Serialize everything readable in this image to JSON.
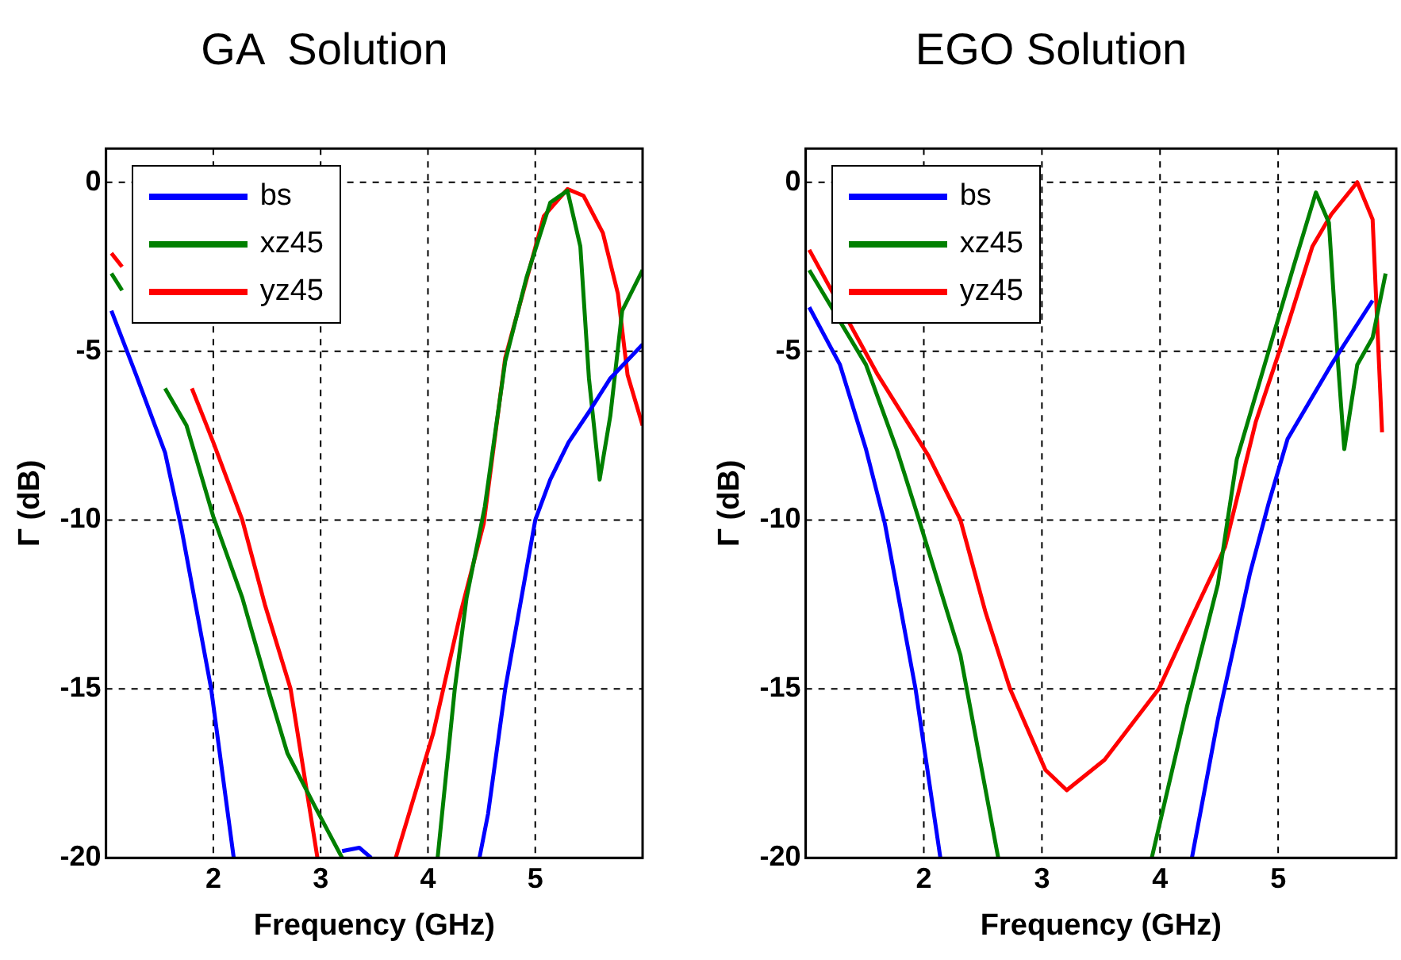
{
  "chart_data": [
    {
      "type": "line",
      "title": "GA  Solution",
      "xlabel": "Frequency (GHz)",
      "ylabel": "Γ (dB)",
      "xlim": [
        1,
        6
      ],
      "xticks": [
        2,
        3,
        4,
        5
      ],
      "ylim": [
        -20,
        1
      ],
      "yticks": [
        0,
        -5,
        -10,
        -15,
        -20
      ],
      "grid": true,
      "legend": "top left",
      "series": [
        {
          "name": "bs",
          "color": "#0000ff",
          "x": [
            1.05,
            1.28,
            1.55,
            1.7,
            1.98,
            2.19,
            2.7,
            3.2,
            3.36,
            3.47,
            4.0,
            4.48,
            4.56,
            4.72,
            5.0,
            5.14,
            5.31,
            5.5,
            5.7,
            6.0
          ],
          "values": [
            -3.8,
            -5.7,
            -8.0,
            -10.2,
            -15.0,
            -20,
            null,
            -19.8,
            -19.7,
            -20,
            null,
            -20,
            -18.7,
            -15.0,
            -10.0,
            -8.8,
            -7.7,
            -6.8,
            -5.8,
            -4.8
          ]
        },
        {
          "name": "xz45",
          "color": "#008000",
          "x": [
            1.05,
            1.15,
            1.23,
            1.55,
            1.75,
            2.0,
            2.27,
            2.53,
            2.69,
            2.95,
            3.2,
            3.6,
            4.09,
            4.25,
            4.36,
            4.53,
            4.72,
            4.92,
            5.14,
            5.3,
            5.42,
            5.5,
            5.6,
            5.7,
            5.81,
            6.0
          ],
          "values": [
            -2.7,
            -3.2,
            null,
            -6.1,
            -7.2,
            -9.9,
            -12.3,
            -15.2,
            -16.9,
            -18.5,
            -20,
            null,
            -20,
            -15.0,
            -12.3,
            -9.6,
            -5.3,
            -2.8,
            -0.6,
            -0.25,
            -1.9,
            -5.8,
            -8.8,
            -6.9,
            -3.8,
            -2.6
          ]
        },
        {
          "name": "yz45",
          "color": "#ff0000",
          "x": [
            1.05,
            1.15,
            1.23,
            1.8,
            2.0,
            2.27,
            2.48,
            2.72,
            2.97,
            3.3,
            3.7,
            4.05,
            4.3,
            4.52,
            4.72,
            5.08,
            5.3,
            5.45,
            5.63,
            5.77,
            5.86,
            6.0
          ],
          "values": [
            -2.1,
            -2.5,
            null,
            -6.1,
            -7.7,
            -10.0,
            -12.5,
            -15.0,
            -20,
            null,
            -20,
            -16.3,
            -12.8,
            -10.1,
            -5.2,
            -1.0,
            -0.2,
            -0.4,
            -1.5,
            -3.3,
            -5.7,
            -7.2
          ]
        }
      ]
    },
    {
      "type": "line",
      "title": "EGO Solution",
      "xlabel": "Frequency (GHz)",
      "ylabel": "Γ (dB)",
      "xlim": [
        1,
        6
      ],
      "xticks": [
        2,
        3,
        4,
        5
      ],
      "ylim": [
        -20,
        1
      ],
      "yticks": [
        0,
        -5,
        -10,
        -15,
        -20
      ],
      "grid": true,
      "legend": "top left",
      "series": [
        {
          "name": "bs",
          "color": "#0000ff",
          "x": [
            1.03,
            1.29,
            1.51,
            1.67,
            1.93,
            2.14,
            3.2,
            4.27,
            4.49,
            4.76,
            4.92,
            5.08,
            5.45,
            5.8
          ],
          "values": [
            -3.7,
            -5.4,
            -7.9,
            -10.1,
            -15.0,
            -20,
            null,
            -20,
            -15.9,
            -11.6,
            -9.5,
            -7.6,
            -5.4,
            -3.5
          ]
        },
        {
          "name": "xz45",
          "color": "#008000",
          "x": [
            1.03,
            1.51,
            1.77,
            1.96,
            2.31,
            2.63,
            3.3,
            3.93,
            4.23,
            4.49,
            4.65,
            4.97,
            5.13,
            5.32,
            5.43,
            5.51,
            5.56,
            5.67,
            5.8,
            5.91
          ],
          "values": [
            -2.6,
            -5.4,
            -7.9,
            -10.0,
            -14.0,
            -20,
            null,
            -20,
            -15.5,
            -11.9,
            -8.2,
            -4.4,
            -2.5,
            -0.3,
            -1.2,
            -5.5,
            -7.9,
            -5.4,
            -4.6,
            -2.7
          ]
        },
        {
          "name": "yz45",
          "color": "#ff0000",
          "x": [
            1.03,
            1.61,
            2.04,
            2.31,
            2.52,
            2.73,
            3.03,
            3.21,
            3.53,
            3.99,
            4.28,
            4.55,
            4.81,
            5.03,
            5.29,
            5.45,
            5.67,
            5.8,
            5.88
          ],
          "values": [
            -2.0,
            -5.7,
            -8.1,
            -10.0,
            -12.7,
            -15.0,
            -17.4,
            -18.0,
            -17.1,
            -15.0,
            -12.8,
            -10.8,
            -7.1,
            -4.8,
            -1.9,
            -0.95,
            0,
            -1.1,
            -7.4
          ]
        }
      ]
    }
  ]
}
